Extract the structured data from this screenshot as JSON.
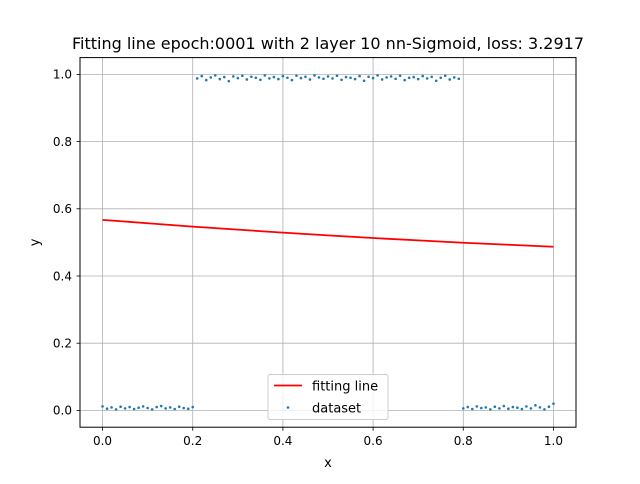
{
  "chart_data": {
    "type": "scatter",
    "title": "Fitting line epoch:0001 with 2 layer 10 nn-Sigmoid, loss: 3.2917",
    "xlabel": "x",
    "ylabel": "y",
    "xlim": [
      -0.05,
      1.05
    ],
    "ylim": [
      -0.05,
      1.05
    ],
    "grid": true,
    "legend_position": "lower center",
    "x_ticks": [
      0.0,
      0.2,
      0.4,
      0.6,
      0.8,
      1.0
    ],
    "x_tick_labels": [
      "0.0",
      "0.2",
      "0.4",
      "0.6",
      "0.8",
      "1.0"
    ],
    "y_ticks": [
      0.0,
      0.2,
      0.4,
      0.6,
      0.8,
      1.0
    ],
    "y_tick_labels": [
      "0.0",
      "0.2",
      "0.4",
      "0.6",
      "0.8",
      "1.0"
    ],
    "series": [
      {
        "name": "fitting line",
        "type": "line",
        "color": "#ff0000",
        "x": [
          0.0,
          0.1,
          0.2,
          0.3,
          0.4,
          0.5,
          0.6,
          0.7,
          0.8,
          0.9,
          1.0
        ],
        "y": [
          0.567,
          0.557,
          0.547,
          0.538,
          0.529,
          0.521,
          0.513,
          0.506,
          0.499,
          0.493,
          0.487
        ]
      },
      {
        "name": "dataset",
        "type": "scatter",
        "color": "#1f77b4",
        "x": [
          0.0,
          0.01,
          0.02,
          0.03,
          0.04,
          0.05,
          0.06,
          0.07,
          0.08,
          0.09,
          0.1,
          0.11,
          0.12,
          0.13,
          0.14,
          0.15,
          0.16,
          0.17,
          0.18,
          0.19,
          0.2,
          0.21,
          0.22,
          0.23,
          0.24,
          0.25,
          0.26,
          0.27,
          0.28,
          0.29,
          0.3,
          0.31,
          0.32,
          0.33,
          0.34,
          0.35,
          0.36,
          0.37,
          0.38,
          0.39,
          0.4,
          0.41,
          0.42,
          0.43,
          0.44,
          0.45,
          0.46,
          0.47,
          0.48,
          0.49,
          0.5,
          0.51,
          0.52,
          0.53,
          0.54,
          0.55,
          0.56,
          0.57,
          0.58,
          0.59,
          0.6,
          0.61,
          0.62,
          0.63,
          0.64,
          0.65,
          0.66,
          0.67,
          0.68,
          0.69,
          0.7,
          0.71,
          0.72,
          0.73,
          0.74,
          0.75,
          0.76,
          0.77,
          0.78,
          0.79,
          0.8,
          0.81,
          0.82,
          0.83,
          0.84,
          0.85,
          0.86,
          0.87,
          0.88,
          0.89,
          0.9,
          0.91,
          0.92,
          0.93,
          0.94,
          0.95,
          0.96,
          0.97,
          0.98,
          0.99,
          1.0
        ],
        "y": [
          0.012,
          0.005,
          0.009,
          0.003,
          0.011,
          0.006,
          0.01,
          0.004,
          0.008,
          0.012,
          0.007,
          0.003,
          0.01,
          0.013,
          0.006,
          0.009,
          0.004,
          0.011,
          0.007,
          0.005,
          0.01,
          0.988,
          0.995,
          0.983,
          0.991,
          0.997,
          0.986,
          0.992,
          0.98,
          0.994,
          0.989,
          0.996,
          0.985,
          0.993,
          0.99,
          0.984,
          0.997,
          0.988,
          0.992,
          0.986,
          0.995,
          0.99,
          0.983,
          0.996,
          0.989,
          0.993,
          0.985,
          0.997,
          0.991,
          0.987,
          0.994,
          0.988,
          0.996,
          0.984,
          0.992,
          0.99,
          0.986,
          0.995,
          0.981,
          0.993,
          0.989,
          0.997,
          0.985,
          0.991,
          0.994,
          0.987,
          0.996,
          0.983,
          0.99,
          0.992,
          0.986,
          0.995,
          0.988,
          0.993,
          0.981,
          0.99,
          0.996,
          0.985,
          0.991,
          0.987,
          0.006,
          0.01,
          0.004,
          0.012,
          0.007,
          0.009,
          0.003,
          0.011,
          0.006,
          0.013,
          0.005,
          0.01,
          0.008,
          0.004,
          0.012,
          0.006,
          0.015,
          0.009,
          0.003,
          0.011,
          0.02
        ]
      }
    ]
  }
}
